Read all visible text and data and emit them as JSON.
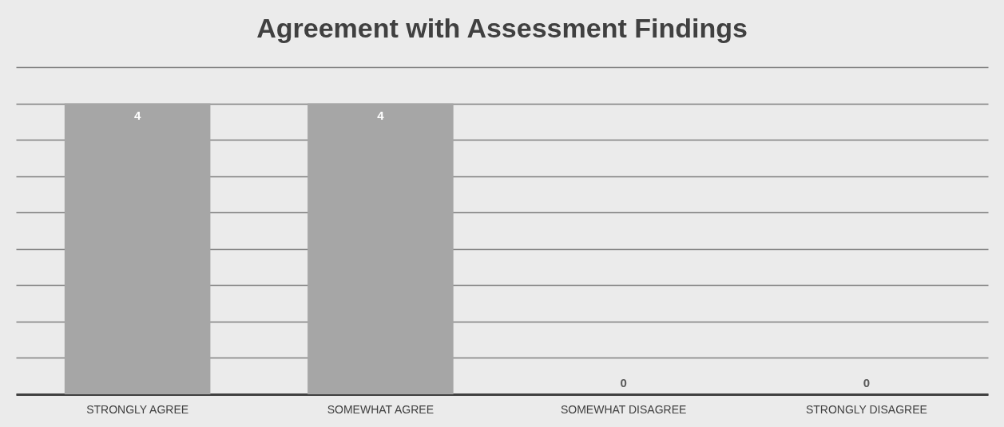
{
  "chart_data": {
    "type": "bar",
    "title": "Agreement with Assessment Findings",
    "categories": [
      "STRONGLY AGREE",
      "SOMEWHAT AGREE",
      "SOMEWHAT DISAGREE",
      "STRONGLY DISAGREE"
    ],
    "values": [
      4,
      4,
      0,
      0
    ],
    "color": "#a6a6a6",
    "ylim": [
      0,
      4.5
    ],
    "yticks": [
      {
        "value": 0,
        "label": null
      },
      {
        "value": 0.5,
        "label": null
      },
      {
        "value": 1,
        "label": null
      },
      {
        "value": 1.5,
        "label": null
      },
      {
        "value": 2,
        "label": null
      },
      {
        "value": 2.5,
        "label": null
      },
      {
        "value": 3,
        "label": null
      },
      {
        "value": 3.5,
        "label": null
      },
      {
        "value": 4,
        "label": null
      },
      {
        "value": 4.5,
        "label": null
      }
    ],
    "grid": "y",
    "tick_labels": "x",
    "data_labels": true
  }
}
